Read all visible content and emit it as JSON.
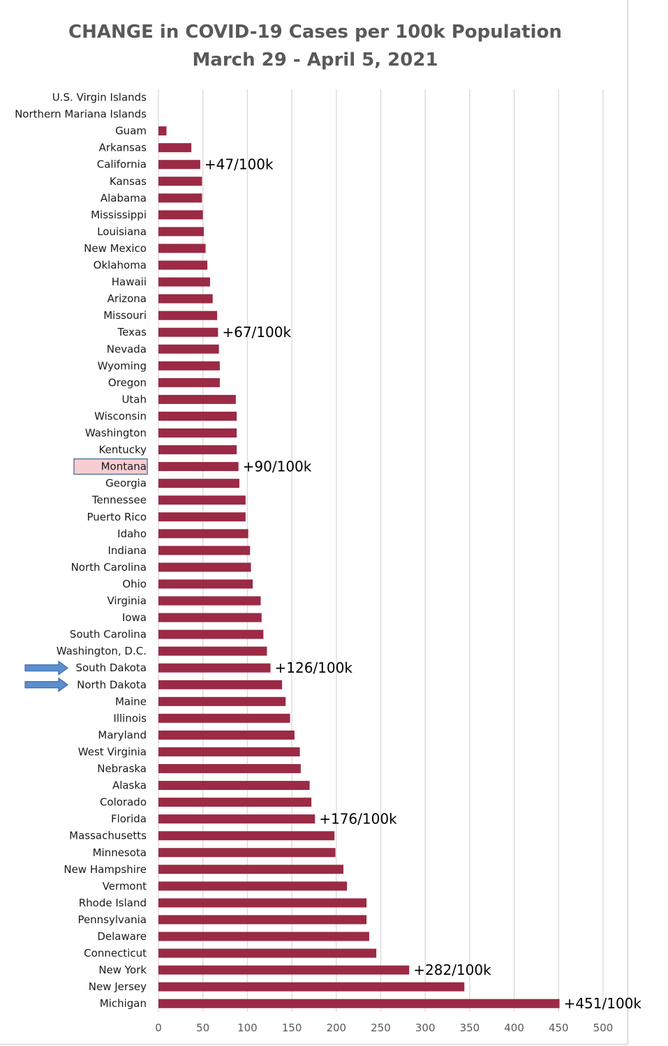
{
  "chart_data": {
    "type": "bar",
    "orientation": "horizontal",
    "title": "CHANGE in COVID-19 Cases per 100k Population",
    "subtitle": "March 29 - April 5, 2021",
    "xlabel": "",
    "ylabel": "",
    "xlim": [
      0,
      500
    ],
    "xticks": [
      "0",
      "50",
      "100",
      "150",
      "200",
      "250",
      "300",
      "350",
      "400",
      "450",
      "500"
    ],
    "grid": "vertical",
    "bar_color": "#9b2a45",
    "categories": [
      "U.S. Virgin Islands",
      "Northern Mariana Islands",
      "Guam",
      "Arkansas",
      "California",
      "Kansas",
      "Alabama",
      "Mississippi",
      "Louisiana",
      "New Mexico",
      "Oklahoma",
      "Hawaii",
      "Arizona",
      "Missouri",
      "Texas",
      "Nevada",
      "Wyoming",
      "Oregon",
      "Utah",
      "Wisconsin",
      "Washington",
      "Kentucky",
      "Montana",
      "Georgia",
      "Tennessee",
      "Puerto Rico",
      "Idaho",
      "Indiana",
      "North Carolina",
      "Ohio",
      "Virginia",
      "Iowa",
      "South Carolina",
      "Washington, D.C.",
      "South Dakota",
      "North Dakota",
      "Maine",
      "Illinois",
      "Maryland",
      "West Virginia",
      "Nebraska",
      "Alaska",
      "Colorado",
      "Florida",
      "Massachusetts",
      "Minnesota",
      "New Hampshire",
      "Vermont",
      "Rhode Island",
      "Pennsylvania",
      "Delaware",
      "Connecticut",
      "New York",
      "New Jersey",
      "Michigan"
    ],
    "values": [
      0,
      0,
      9,
      37,
      47,
      49,
      49,
      50,
      51,
      53,
      55,
      58,
      61,
      66,
      67,
      68,
      69,
      69,
      87,
      88,
      88,
      88,
      90,
      91,
      98,
      98,
      101,
      103,
      104,
      106,
      115,
      116,
      118,
      122,
      126,
      139,
      143,
      148,
      153,
      159,
      160,
      170,
      172,
      176,
      198,
      199,
      208,
      212,
      234,
      234,
      237,
      245,
      282,
      344,
      451
    ],
    "annotations": [
      {
        "category": "California",
        "text": "+47/100k"
      },
      {
        "category": "Texas",
        "text": "+67/100k"
      },
      {
        "category": "Montana",
        "text": "+90/100k"
      },
      {
        "category": "South Dakota",
        "text": "+126/100k"
      },
      {
        "category": "Florida",
        "text": "+176/100k"
      },
      {
        "category": "New York",
        "text": "+282/100k"
      },
      {
        "category": "Michigan",
        "text": "+451/100k"
      }
    ],
    "highlighted_label": {
      "category": "Montana",
      "fill": "#f8cdd2",
      "border": "#4a6a90"
    },
    "arrow_markers": {
      "categories": [
        "South Dakota",
        "North Dakota"
      ],
      "fill": "#5b8fd0",
      "stroke": "#3a6aa8"
    }
  }
}
